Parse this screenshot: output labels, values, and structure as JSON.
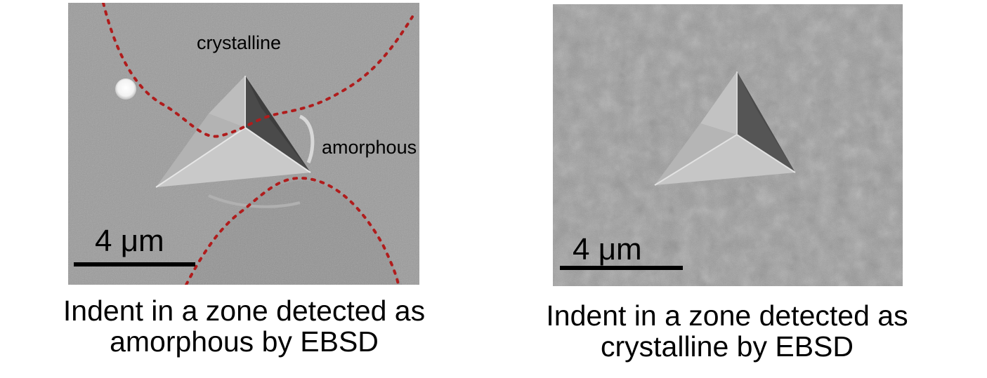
{
  "left_panel": {
    "region_labels": {
      "crystalline": "crystalline",
      "amorphous": "amorphous"
    },
    "scale_bar_label": "4 μm",
    "caption_line1": "Indent in a zone detected as",
    "caption_line2": "amorphous by EBSD",
    "boundary_color": "#b01c1c"
  },
  "right_panel": {
    "scale_bar_label": "4 μm",
    "caption_line1": "Indent in a zone detected as",
    "caption_line2": "crystalline by EBSD"
  }
}
